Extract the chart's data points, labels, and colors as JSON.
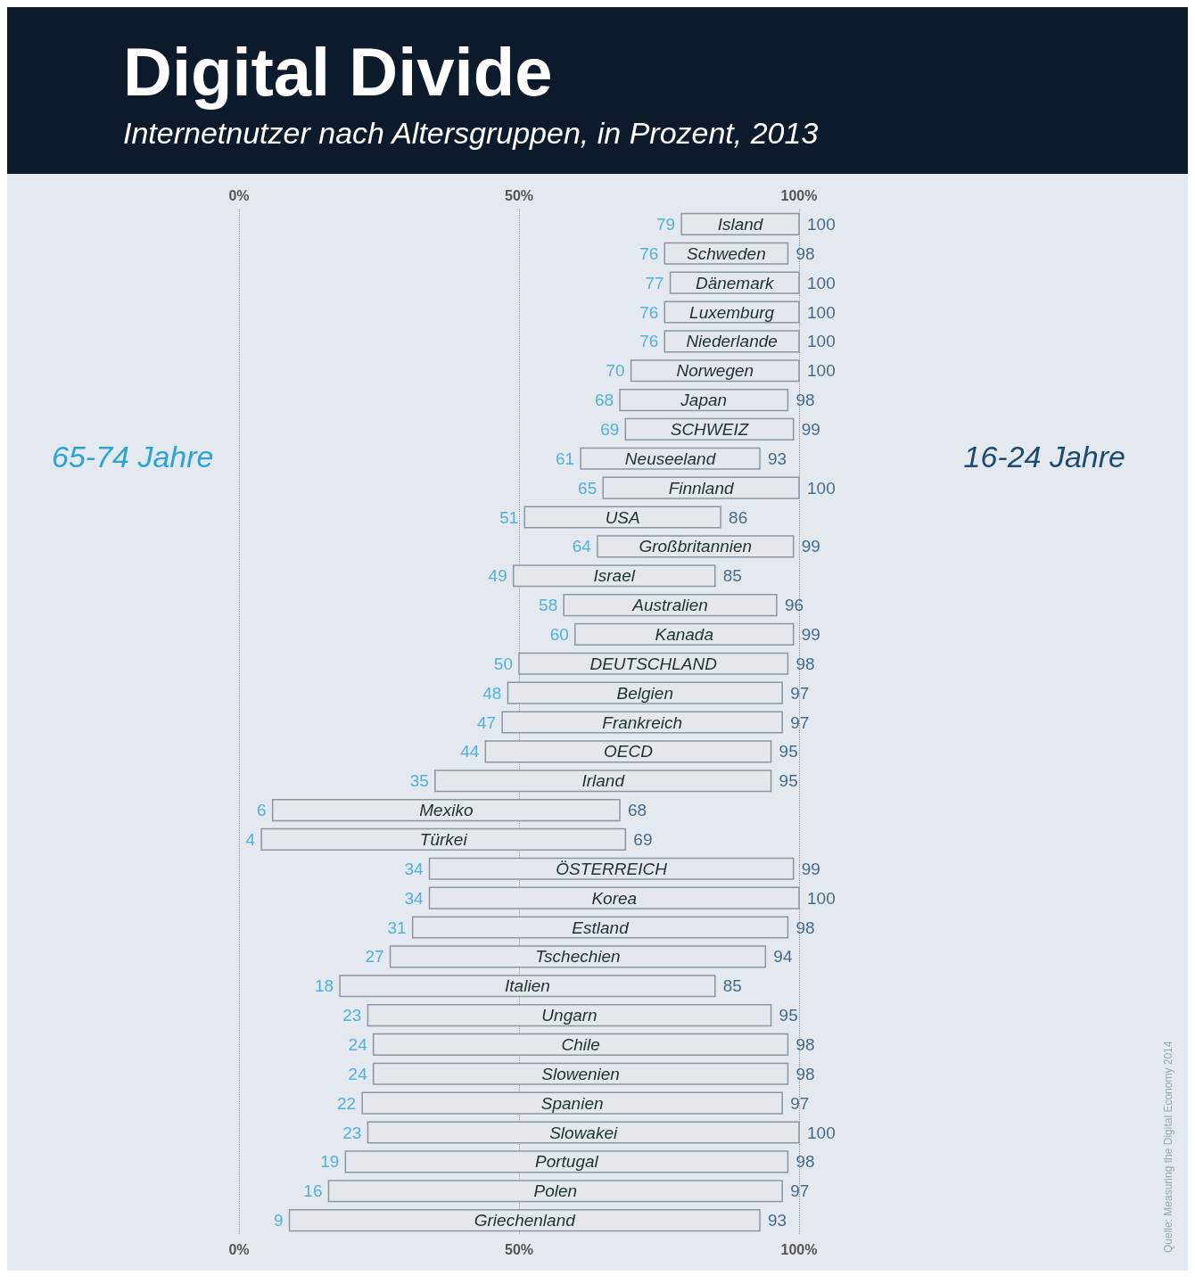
{
  "chart_data": {
    "type": "bar",
    "orientation": "horizontal",
    "title": "Digital Divide",
    "subtitle": "Internetnutzer nach Altersgruppen, in Prozent, 2013",
    "categories": [
      "Island",
      "Schweden",
      "Dänemark",
      "Luxemburg",
      "Niederlande",
      "Norwegen",
      "Japan",
      "SCHWEIZ",
      "Neuseeland",
      "Finnland",
      "USA",
      "Großbritannien",
      "Israel",
      "Australien",
      "Kanada",
      "DEUTSCHLAND",
      "Belgien",
      "Frankreich",
      "OECD",
      "Irland",
      "Mexiko",
      "Türkei",
      "ÖSTERREICH",
      "Korea",
      "Estland",
      "Tschechien",
      "Italien",
      "Ungarn",
      "Chile",
      "Slowenien",
      "Spanien",
      "Slowakei",
      "Portugal",
      "Polen",
      "Griechenland"
    ],
    "base": [
      79,
      76,
      77,
      76,
      76,
      70,
      68,
      69,
      61,
      65,
      51,
      64,
      49,
      58,
      60,
      50,
      48,
      47,
      44,
      35,
      6,
      4,
      34,
      34,
      31,
      27,
      18,
      23,
      24,
      24,
      22,
      23,
      19,
      16,
      9
    ],
    "values": [
      21,
      22,
      23,
      24,
      24,
      30,
      30,
      30,
      32,
      35,
      35,
      35,
      36,
      38,
      39,
      48,
      49,
      50,
      51,
      60,
      62,
      65,
      65,
      66,
      67,
      67,
      67,
      72,
      74,
      74,
      75,
      77,
      79,
      81,
      84
    ],
    "color": "#e4e8ec",
    "xlim": [
      0,
      100
    ],
    "xticks": [
      {
        "value": 0,
        "label": "0%"
      },
      {
        "value": 50,
        "label": "50%"
      },
      {
        "value": 100,
        "label": "100%"
      }
    ],
    "x2lim": [
      0,
      100
    ],
    "x2ticks": [
      {
        "value": 0,
        "label": "0%"
      },
      {
        "value": 50,
        "label": "50%"
      },
      {
        "value": 100,
        "label": "100%"
      }
    ],
    "grid": "x",
    "tick_labels": "x",
    "annotations": [
      {
        "text": "79",
        "x": 79,
        "y": "Island"
      },
      {
        "text": "100",
        "x": 100,
        "y": "Island"
      },
      {
        "text": "76",
        "x": 76,
        "y": "Schweden"
      },
      {
        "text": "98",
        "x": 98,
        "y": "Schweden"
      },
      {
        "text": "77",
        "x": 77,
        "y": "Dänemark"
      },
      {
        "text": "100",
        "x": 100,
        "y": "Dänemark"
      },
      {
        "text": "76",
        "x": 76,
        "y": "Luxemburg"
      },
      {
        "text": "100",
        "x": 100,
        "y": "Luxemburg"
      },
      {
        "text": "76",
        "x": 76,
        "y": "Niederlande"
      },
      {
        "text": "100",
        "x": 100,
        "y": "Niederlande"
      },
      {
        "text": "70",
        "x": 70,
        "y": "Norwegen"
      },
      {
        "text": "100",
        "x": 100,
        "y": "Norwegen"
      },
      {
        "text": "68",
        "x": 68,
        "y": "Japan"
      },
      {
        "text": "98",
        "x": 98,
        "y": "Japan"
      },
      {
        "text": "69",
        "x": 69,
        "y": "SCHWEIZ"
      },
      {
        "text": "99",
        "x": 99,
        "y": "SCHWEIZ"
      },
      {
        "text": "61",
        "x": 61,
        "y": "Neuseeland"
      },
      {
        "text": "93",
        "x": 93,
        "y": "Neuseeland"
      },
      {
        "text": "65",
        "x": 65,
        "y": "Finnland"
      },
      {
        "text": "100",
        "x": 100,
        "y": "Finnland"
      },
      {
        "text": "51",
        "x": 51,
        "y": "USA"
      },
      {
        "text": "86",
        "x": 86,
        "y": "USA"
      },
      {
        "text": "64",
        "x": 64,
        "y": "Großbritannien"
      },
      {
        "text": "99",
        "x": 99,
        "y": "Großbritannien"
      },
      {
        "text": "49",
        "x": 49,
        "y": "Israel"
      },
      {
        "text": "85",
        "x": 85,
        "y": "Israel"
      },
      {
        "text": "58",
        "x": 58,
        "y": "Australien"
      },
      {
        "text": "96",
        "x": 96,
        "y": "Australien"
      },
      {
        "text": "60",
        "x": 60,
        "y": "Kanada"
      },
      {
        "text": "99",
        "x": 99,
        "y": "Kanada"
      },
      {
        "text": "50",
        "x": 50,
        "y": "DEUTSCHLAND"
      },
      {
        "text": "98",
        "x": 98,
        "y": "DEUTSCHLAND"
      },
      {
        "text": "48",
        "x": 48,
        "y": "Belgien"
      },
      {
        "text": "97",
        "x": 97,
        "y": "Belgien"
      },
      {
        "text": "47",
        "x": 47,
        "y": "Frankreich"
      },
      {
        "text": "97",
        "x": 97,
        "y": "Frankreich"
      },
      {
        "text": "44",
        "x": 44,
        "y": "OECD"
      },
      {
        "text": "95",
        "x": 95,
        "y": "OECD"
      },
      {
        "text": "35",
        "x": 35,
        "y": "Irland"
      },
      {
        "text": "95",
        "x": 95,
        "y": "Irland"
      },
      {
        "text": "6",
        "x": 6,
        "y": "Mexiko"
      },
      {
        "text": "68",
        "x": 68,
        "y": "Mexiko"
      },
      {
        "text": "4",
        "x": 4,
        "y": "Türkei"
      },
      {
        "text": "69",
        "x": 69,
        "y": "Türkei"
      },
      {
        "text": "34",
        "x": 34,
        "y": "ÖSTERREICH"
      },
      {
        "text": "99",
        "x": 99,
        "y": "ÖSTERREICH"
      },
      {
        "text": "34",
        "x": 34,
        "y": "Korea"
      },
      {
        "text": "100",
        "x": 100,
        "y": "Korea"
      },
      {
        "text": "31",
        "x": 31,
        "y": "Estland"
      },
      {
        "text": "98",
        "x": 98,
        "y": "Estland"
      },
      {
        "text": "27",
        "x": 27,
        "y": "Tschechien"
      },
      {
        "text": "94",
        "x": 94,
        "y": "Tschechien"
      },
      {
        "text": "18",
        "x": 18,
        "y": "Italien"
      },
      {
        "text": "85",
        "x": 85,
        "y": "Italien"
      },
      {
        "text": "23",
        "x": 23,
        "y": "Ungarn"
      },
      {
        "text": "95",
        "x": 95,
        "y": "Ungarn"
      },
      {
        "text": "24",
        "x": 24,
        "y": "Chile"
      },
      {
        "text": "98",
        "x": 98,
        "y": "Chile"
      },
      {
        "text": "24",
        "x": 24,
        "y": "Slowenien"
      },
      {
        "text": "98",
        "x": 98,
        "y": "Slowenien"
      },
      {
        "text": "22",
        "x": 22,
        "y": "Spanien"
      },
      {
        "text": "97",
        "x": 97,
        "y": "Spanien"
      },
      {
        "text": "23",
        "x": 23,
        "y": "Slowakei"
      },
      {
        "text": "100",
        "x": 100,
        "y": "Slowakei"
      },
      {
        "text": "19",
        "x": 19,
        "y": "Portugal"
      },
      {
        "text": "98",
        "x": 98,
        "y": "Portugal"
      },
      {
        "text": "16",
        "x": 16,
        "y": "Polen"
      },
      {
        "text": "97",
        "x": 97,
        "y": "Polen"
      },
      {
        "text": "9",
        "x": 9,
        "y": "Griechenland"
      },
      {
        "text": "93",
        "x": 93,
        "y": "Griechenland"
      },
      "65-74 Jahre",
      "16-24 Jahre",
      "Quelle: Measuring the Digital Economy 2014"
    ]
  }
}
